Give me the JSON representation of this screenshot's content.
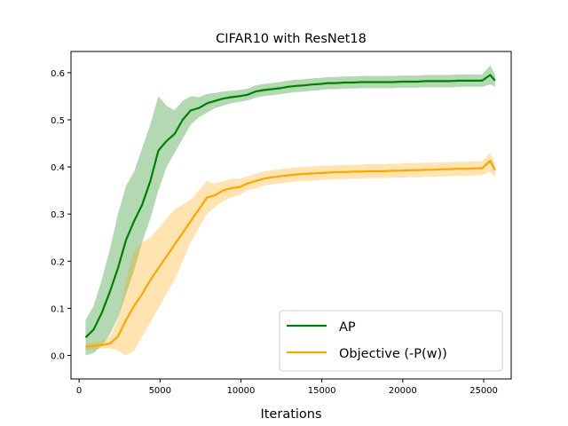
{
  "chart_data": {
    "type": "line",
    "title": "CIFAR10 with ResNet18",
    "xlabel": "Iterations",
    "ylabel": "",
    "xlim": [
      -500,
      26700
    ],
    "ylim": [
      -0.05,
      0.645
    ],
    "xticks": [
      0,
      5000,
      10000,
      15000,
      20000,
      25000
    ],
    "yticks": [
      0.0,
      0.1,
      0.2,
      0.3,
      0.4,
      0.5,
      0.6
    ],
    "xtick_labels": [
      "0",
      "5000",
      "10000",
      "15000",
      "20000",
      "25000"
    ],
    "ytick_labels": [
      "0.0",
      "0.1",
      "0.2",
      "0.3",
      "0.4",
      "0.5",
      "0.6"
    ],
    "grid": false,
    "legend_position": "lower-right",
    "series": [
      {
        "name": "AP",
        "color": "#008000",
        "x": [
          400,
          900,
          1400,
          1900,
          2400,
          2900,
          3400,
          3900,
          4400,
          4900,
          5400,
          5900,
          6400,
          6900,
          7400,
          7900,
          8400,
          8900,
          9400,
          9900,
          10400,
          10900,
          11400,
          11900,
          12400,
          12900,
          13400,
          13900,
          14400,
          14900,
          15400,
          15900,
          16400,
          16900,
          17400,
          17900,
          18400,
          18900,
          19400,
          19900,
          20400,
          20900,
          21400,
          21900,
          22400,
          22900,
          23400,
          23900,
          24400,
          24900,
          25400,
          25700
        ],
        "y": [
          0.038,
          0.055,
          0.09,
          0.135,
          0.185,
          0.245,
          0.285,
          0.32,
          0.37,
          0.435,
          0.455,
          0.47,
          0.5,
          0.52,
          0.525,
          0.535,
          0.54,
          0.545,
          0.548,
          0.55,
          0.553,
          0.56,
          0.563,
          0.565,
          0.567,
          0.57,
          0.572,
          0.573,
          0.575,
          0.576,
          0.578,
          0.578,
          0.579,
          0.579,
          0.58,
          0.58,
          0.58,
          0.58,
          0.58,
          0.581,
          0.581,
          0.581,
          0.582,
          0.582,
          0.582,
          0.582,
          0.583,
          0.583,
          0.583,
          0.583,
          0.595,
          0.583
        ],
        "lower": [
          0.0,
          0.005,
          0.02,
          0.045,
          0.08,
          0.13,
          0.18,
          0.24,
          0.29,
          0.35,
          0.4,
          0.43,
          0.46,
          0.49,
          0.505,
          0.515,
          0.525,
          0.53,
          0.535,
          0.538,
          0.541,
          0.547,
          0.55,
          0.552,
          0.554,
          0.557,
          0.559,
          0.56,
          0.562,
          0.563,
          0.565,
          0.565,
          0.566,
          0.566,
          0.567,
          0.567,
          0.567,
          0.567,
          0.567,
          0.568,
          0.568,
          0.568,
          0.569,
          0.569,
          0.569,
          0.569,
          0.57,
          0.57,
          0.57,
          0.57,
          0.575,
          0.57
        ],
        "upper": [
          0.075,
          0.105,
          0.16,
          0.225,
          0.3,
          0.36,
          0.39,
          0.44,
          0.49,
          0.55,
          0.53,
          0.52,
          0.54,
          0.55,
          0.548,
          0.555,
          0.557,
          0.56,
          0.562,
          0.563,
          0.566,
          0.573,
          0.576,
          0.578,
          0.58,
          0.583,
          0.585,
          0.586,
          0.588,
          0.589,
          0.591,
          0.591,
          0.592,
          0.592,
          0.593,
          0.593,
          0.593,
          0.593,
          0.593,
          0.594,
          0.594,
          0.594,
          0.595,
          0.595,
          0.595,
          0.595,
          0.596,
          0.596,
          0.596,
          0.596,
          0.615,
          0.596
        ]
      },
      {
        "name": "Objective (-P(w))",
        "color": "#FFA500",
        "x": [
          400,
          900,
          1400,
          1900,
          2400,
          2900,
          3400,
          3900,
          4400,
          4900,
          5400,
          5900,
          6400,
          6900,
          7400,
          7900,
          8400,
          8900,
          9400,
          9900,
          10400,
          10900,
          11400,
          11900,
          12400,
          12900,
          13400,
          13900,
          14400,
          14900,
          15400,
          15900,
          16400,
          16900,
          17400,
          17900,
          18400,
          18900,
          19400,
          19900,
          20400,
          20900,
          21400,
          21900,
          22400,
          22900,
          23400,
          23900,
          24400,
          24900,
          25400,
          25700
        ],
        "y": [
          0.018,
          0.02,
          0.022,
          0.025,
          0.04,
          0.075,
          0.105,
          0.13,
          0.16,
          0.185,
          0.21,
          0.235,
          0.26,
          0.285,
          0.31,
          0.335,
          0.34,
          0.35,
          0.355,
          0.357,
          0.365,
          0.37,
          0.375,
          0.378,
          0.38,
          0.382,
          0.384,
          0.385,
          0.386,
          0.387,
          0.388,
          0.389,
          0.389,
          0.39,
          0.39,
          0.391,
          0.391,
          0.391,
          0.392,
          0.392,
          0.393,
          0.393,
          0.394,
          0.394,
          0.395,
          0.395,
          0.396,
          0.396,
          0.397,
          0.397,
          0.413,
          0.393
        ],
        "lower": [
          0.012,
          0.013,
          0.015,
          0.015,
          0.01,
          0.0,
          0.01,
          0.04,
          0.07,
          0.1,
          0.13,
          0.16,
          0.2,
          0.24,
          0.27,
          0.3,
          0.315,
          0.327,
          0.335,
          0.34,
          0.35,
          0.355,
          0.36,
          0.363,
          0.365,
          0.367,
          0.369,
          0.37,
          0.371,
          0.372,
          0.373,
          0.374,
          0.374,
          0.375,
          0.375,
          0.376,
          0.376,
          0.376,
          0.377,
          0.377,
          0.378,
          0.378,
          0.379,
          0.379,
          0.38,
          0.38,
          0.381,
          0.381,
          0.382,
          0.382,
          0.39,
          0.378
        ],
        "upper": [
          0.024,
          0.028,
          0.03,
          0.04,
          0.075,
          0.16,
          0.22,
          0.24,
          0.25,
          0.27,
          0.29,
          0.31,
          0.32,
          0.33,
          0.35,
          0.37,
          0.365,
          0.37,
          0.375,
          0.375,
          0.38,
          0.385,
          0.39,
          0.393,
          0.395,
          0.397,
          0.399,
          0.4,
          0.401,
          0.402,
          0.403,
          0.404,
          0.404,
          0.405,
          0.405,
          0.406,
          0.406,
          0.406,
          0.407,
          0.407,
          0.408,
          0.408,
          0.409,
          0.409,
          0.41,
          0.41,
          0.411,
          0.411,
          0.412,
          0.412,
          0.43,
          0.408
        ]
      }
    ]
  }
}
